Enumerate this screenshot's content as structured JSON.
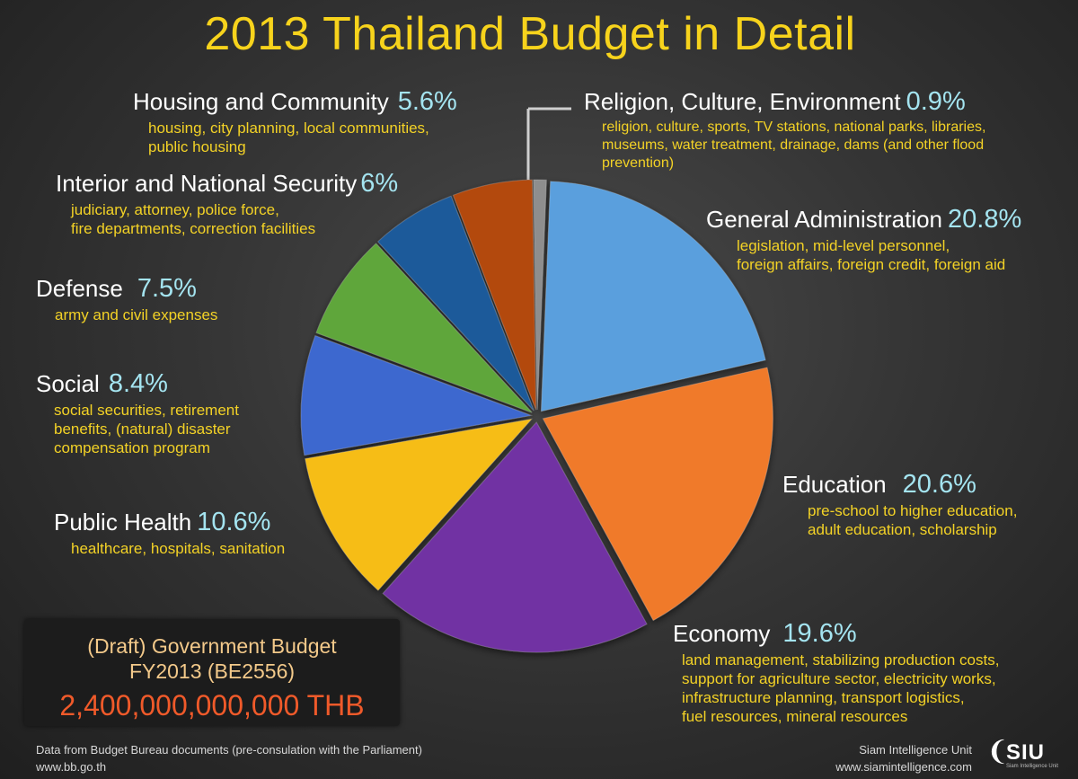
{
  "title": "2013 Thailand Budget in Detail",
  "chart_data": {
    "type": "pie",
    "title": "2013 Thailand Budget in Detail",
    "unit": "%",
    "slices": [
      {
        "name": "General Administration",
        "value": 20.8,
        "color": "#5a9fdd"
      },
      {
        "name": "Education",
        "value": 20.6,
        "color": "#f07a2c"
      },
      {
        "name": "Economy",
        "value": 19.6,
        "color": "#7132a3"
      },
      {
        "name": "Public Health",
        "value": 10.6,
        "color": "#f6bd16"
      },
      {
        "name": "Social",
        "value": 8.4,
        "color": "#3d67cf"
      },
      {
        "name": "Defense",
        "value": 7.5,
        "color": "#5ea63a"
      },
      {
        "name": "Interior and National Security",
        "value": 6,
        "color": "#1f5a9a"
      },
      {
        "name": "Housing and Community",
        "value": 5.6,
        "color": "#b3490f"
      },
      {
        "name": "Religion, Culture, Environment",
        "value": 0.9,
        "color": "#8e8e8e"
      }
    ]
  },
  "categories": [
    {
      "name": "General Administration",
      "pct": "20.8%",
      "desc": [
        "legislation, mid-level personnel,",
        "foreign affairs, foreign credit, foreign aid"
      ]
    },
    {
      "name": "Education",
      "pct": "20.6%",
      "desc": [
        "pre-school to higher education,",
        "adult education, scholarship"
      ]
    },
    {
      "name": "Economy",
      "pct": "19.6%",
      "desc": [
        "land management, stabilizing production costs,",
        "support for agriculture sector, electricity works,",
        "infrastructure planning, transport logistics,",
        "fuel resources, mineral resources"
      ]
    },
    {
      "name": "Public Health",
      "pct": "10.6%",
      "desc": [
        "healthcare, hospitals, sanitation"
      ]
    },
    {
      "name": "Social",
      "pct": "8.4%",
      "desc": [
        "social securities, retirement",
        "benefits, (natural) disaster",
        "compensation program"
      ]
    },
    {
      "name": "Defense",
      "pct": "7.5%",
      "desc": [
        "army and civil expenses"
      ]
    },
    {
      "name": "Interior and National Security",
      "pct": "6%",
      "desc": [
        "judiciary, attorney, police force,",
        "fire departments, correction facilities"
      ]
    },
    {
      "name": "Housing and Community",
      "pct": "5.6%",
      "desc": [
        "housing, city planning, local communities,",
        "public housing"
      ]
    },
    {
      "name": "Religion, Culture, Environment",
      "pct": "0.9%",
      "desc": [
        "religion, culture, sports, TV stations, national parks, libraries,",
        "museums, water treatment, drainage, dams (and other flood",
        "prevention)"
      ]
    }
  ],
  "budget": {
    "line1": "(Draft) Government Budget",
    "line2": "FY2013 (BE2556)",
    "amount": "2,400,000,000,000 THB"
  },
  "footer": {
    "source": "Data from Budget Bureau documents (pre-consulation with the Parliament)",
    "source_url": "www.bb.go.th",
    "org": "Siam Intelligence Unit",
    "org_url": "www.siamintelligence.com",
    "logo_text": "SIU",
    "logo_subtext": "Siam Intelligence Unit"
  }
}
